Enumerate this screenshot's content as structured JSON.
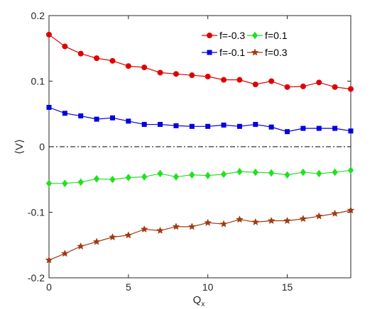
{
  "chart_data": {
    "type": "line",
    "title": "",
    "xlabel": "Q",
    "xlabel_subscript": "x",
    "ylabel": "⟨V⟩",
    "xlim": [
      0,
      19
    ],
    "ylim": [
      -0.2,
      0.2
    ],
    "x_ticks": [
      0,
      5,
      10,
      15
    ],
    "y_ticks": [
      -0.2,
      -0.1,
      0,
      0.1,
      0.2
    ],
    "x_tick_labels": [
      "0",
      "5",
      "10",
      "15"
    ],
    "y_tick_labels": [
      "-0.2",
      "-0.1",
      "0",
      "0.1",
      "0.2"
    ],
    "grid": false,
    "legend_position": "top-right",
    "zero_line": {
      "y": 0,
      "style": "dash-dot",
      "color": "#000000"
    },
    "x": [
      0,
      1,
      2,
      3,
      4,
      5,
      6,
      7,
      8,
      9,
      10,
      11,
      12,
      13,
      14,
      15,
      16,
      17,
      18,
      19
    ],
    "series": [
      {
        "name": "f=-0.3",
        "color": "#e00000",
        "marker": "circle",
        "values": [
          0.171,
          0.153,
          0.142,
          0.135,
          0.131,
          0.123,
          0.121,
          0.113,
          0.111,
          0.109,
          0.107,
          0.102,
          0.102,
          0.095,
          0.1,
          0.091,
          0.092,
          0.098,
          0.091,
          0.088
        ]
      },
      {
        "name": "f=-0.1",
        "color": "#0000e0",
        "marker": "square",
        "values": [
          0.06,
          0.051,
          0.047,
          0.042,
          0.044,
          0.039,
          0.034,
          0.034,
          0.032,
          0.031,
          0.031,
          0.033,
          0.031,
          0.034,
          0.03,
          0.023,
          0.028,
          0.028,
          0.028,
          0.024
        ]
      },
      {
        "name": "f=0.1",
        "color": "#22e022",
        "marker": "diamond",
        "values": [
          -0.056,
          -0.056,
          -0.054,
          -0.049,
          -0.05,
          -0.047,
          -0.046,
          -0.041,
          -0.046,
          -0.043,
          -0.044,
          -0.042,
          -0.038,
          -0.039,
          -0.04,
          -0.043,
          -0.039,
          -0.041,
          -0.039,
          -0.036
        ]
      },
      {
        "name": "f=0.3",
        "color": "#a03a10",
        "marker": "star",
        "values": [
          -0.173,
          -0.163,
          -0.152,
          -0.145,
          -0.138,
          -0.135,
          -0.126,
          -0.128,
          -0.122,
          -0.122,
          -0.116,
          -0.118,
          -0.111,
          -0.115,
          -0.113,
          -0.113,
          -0.11,
          -0.106,
          -0.102,
          -0.097
        ]
      }
    ],
    "legend_order": [
      0,
      2,
      1,
      3
    ]
  }
}
